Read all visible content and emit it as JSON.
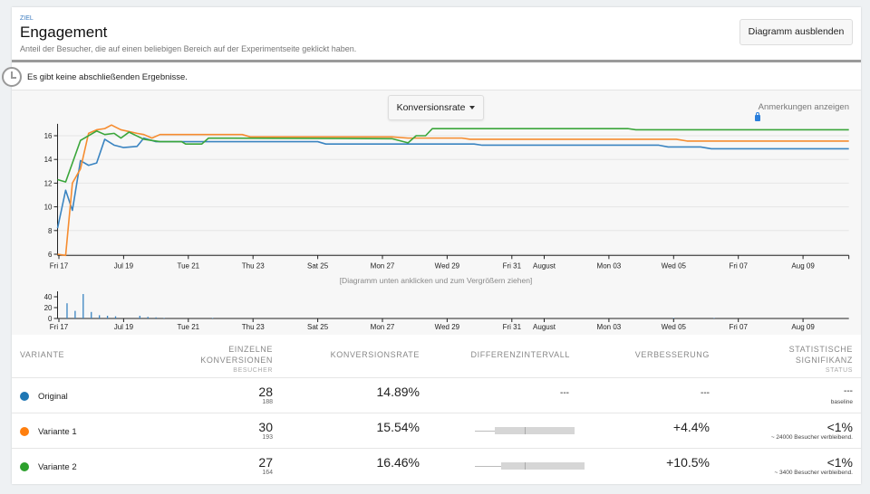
{
  "header": {
    "goal_label": "ZIEL",
    "title": "Engagement",
    "description": "Anteil der Besucher, die auf einen beliebigen Bereich auf der Experimentseite geklickt haben.",
    "hide_chart_button": "Diagramm ausblenden"
  },
  "notice": {
    "icon": "clock-icon",
    "text": "Es gibt keine abschließenden Ergebnisse."
  },
  "chart_controls": {
    "metric_select": "Konversionsrate",
    "annotations_link": "Anmerkungen anzeigen",
    "annotations_icon": "lock-icon",
    "zoom_hint": "[Diagramm unten anklicken und zum Vergrößern ziehen]"
  },
  "chart_data": [
    {
      "type": "line",
      "xlim": [
        "07-16 23:00",
        "08-10 10:00"
      ],
      "ylim": [
        5.9,
        17
      ],
      "grid": true,
      "y_ticks": [
        "6",
        "8",
        "10",
        "12",
        "14",
        "16"
      ],
      "x_ticks": [
        {
          "at": "07-17 00:00",
          "label": "Fri 17"
        },
        {
          "at": "07-19 00:00",
          "label": "Jul 19"
        },
        {
          "at": "07-21 00:00",
          "label": "Tue 21"
        },
        {
          "at": "07-23 00:00",
          "label": "Thu 23"
        },
        {
          "at": "07-25 00:00",
          "label": "Sat 25"
        },
        {
          "at": "07-27 00:00",
          "label": "Mon 27"
        },
        {
          "at": "07-29 00:00",
          "label": "Wed 29"
        },
        {
          "at": "07-31 00:00",
          "label": "Fri 31"
        },
        {
          "at": "08-01 00:00",
          "label": "August"
        },
        {
          "at": "08-03 00:00",
          "label": "Mon 03"
        },
        {
          "at": "08-05 00:00",
          "label": "Wed 05"
        },
        {
          "at": "08-07 00:00",
          "label": "Fri 07"
        },
        {
          "at": "08-09 00:00",
          "label": "Aug 09"
        }
      ],
      "series": [
        {
          "name": "Original",
          "color": "#3a84c1",
          "points": [
            [
              "07-16 23:00",
              8.2
            ],
            [
              "07-17 05:00",
              11.4
            ],
            [
              "07-17 10:00",
              9.7
            ],
            [
              "07-17 16:00",
              13.9
            ],
            [
              "07-17 22:00",
              13.5
            ],
            [
              "07-18 04:00",
              13.7
            ],
            [
              "07-18 10:00",
              15.7
            ],
            [
              "07-18 17:00",
              15.2
            ],
            [
              "07-19 00:00",
              15.0
            ],
            [
              "07-19 10:00",
              15.1
            ],
            [
              "07-19 15:00",
              15.8
            ],
            [
              "07-20 00:00",
              15.5
            ],
            [
              "07-25 00:00",
              15.5
            ],
            [
              "07-25 06:00",
              15.3
            ],
            [
              "07-29 20:00",
              15.3
            ],
            [
              "07-30 02:00",
              15.2
            ],
            [
              "08-04 13:00",
              15.2
            ],
            [
              "08-04 20:00",
              15.05
            ],
            [
              "08-05 20:00",
              15.05
            ],
            [
              "08-06 04:00",
              14.9
            ],
            [
              "08-10 10:00",
              14.9
            ]
          ]
        },
        {
          "name": "Variante 1",
          "color": "#f68c2f",
          "points": [
            [
              "07-16 23:00",
              6.0
            ],
            [
              "07-17 05:00",
              5.9
            ],
            [
              "07-17 10:00",
              12.0
            ],
            [
              "07-17 16:00",
              13.2
            ],
            [
              "07-17 22:00",
              16.2
            ],
            [
              "07-18 04:00",
              16.5
            ],
            [
              "07-18 10:00",
              16.6
            ],
            [
              "07-18 15:00",
              16.9
            ],
            [
              "07-18 22:00",
              16.5
            ],
            [
              "07-19 10:00",
              16.2
            ],
            [
              "07-19 15:00",
              16.1
            ],
            [
              "07-19 21:00",
              15.8
            ],
            [
              "07-20 03:00",
              16.1
            ],
            [
              "07-22 16:00",
              16.1
            ],
            [
              "07-22 22:00",
              15.9
            ],
            [
              "07-27 07:00",
              15.9
            ],
            [
              "07-27 19:00",
              15.8
            ],
            [
              "07-29 11:00",
              15.8
            ],
            [
              "07-29 17:00",
              15.7
            ],
            [
              "08-05 02:00",
              15.7
            ],
            [
              "08-05 10:00",
              15.55
            ],
            [
              "08-10 10:00",
              15.55
            ]
          ]
        },
        {
          "name": "Variante 2",
          "color": "#3aa63a",
          "points": [
            [
              "07-16 23:00",
              12.3
            ],
            [
              "07-17 05:00",
              12.1
            ],
            [
              "07-17 16:00",
              15.6
            ],
            [
              "07-18 04:00",
              16.4
            ],
            [
              "07-18 10:00",
              16.1
            ],
            [
              "07-18 17:00",
              16.2
            ],
            [
              "07-18 22:00",
              15.8
            ],
            [
              "07-19 04:00",
              16.3
            ],
            [
              "07-19 15:00",
              15.7
            ],
            [
              "07-20 03:00",
              15.5
            ],
            [
              "07-20 19:00",
              15.5
            ],
            [
              "07-20 22:00",
              15.3
            ],
            [
              "07-21 10:00",
              15.3
            ],
            [
              "07-21 15:00",
              15.8
            ],
            [
              "07-27 07:00",
              15.75
            ],
            [
              "07-27 19:00",
              15.4
            ],
            [
              "07-28 01:00",
              16.0
            ],
            [
              "07-28 08:00",
              16.0
            ],
            [
              "07-28 13:00",
              16.6
            ],
            [
              "08-03 14:00",
              16.6
            ],
            [
              "08-03 20:00",
              16.5
            ],
            [
              "08-10 10:00",
              16.5
            ]
          ]
        }
      ]
    },
    {
      "type": "bar",
      "ylim": [
        0,
        50
      ],
      "y_ticks": [
        "0",
        "20",
        "40"
      ],
      "color": "#3a84c1",
      "bars": [
        [
          "07-17 06:00",
          28
        ],
        [
          "07-17 12:00",
          14
        ],
        [
          "07-17 18:00",
          45
        ],
        [
          "07-18 00:00",
          12
        ],
        [
          "07-18 06:00",
          6
        ],
        [
          "07-18 12:00",
          5
        ],
        [
          "07-18 18:00",
          4
        ],
        [
          "07-19 12:00",
          5
        ],
        [
          "07-19 18:00",
          3
        ],
        [
          "07-20 00:00",
          2
        ],
        [
          "07-20 06:00",
          1
        ],
        [
          "07-21 18:00",
          1
        ],
        [
          "08-05 00:00",
          1
        ],
        [
          "08-06 06:00",
          1
        ]
      ]
    }
  ],
  "table": {
    "headers": {
      "variant": "VARIANTE",
      "conv_1": "EINZELNE",
      "conv_2": "KONVERSIONEN",
      "conv_sub": "BESUCHER",
      "rate": "KONVERSIONSRATE",
      "interval": "DIFFERENZINTERVALL",
      "improvement": "VERBESSERUNG",
      "sig_1": "STATISTISCHE",
      "sig_2": "SIGNIFIKANZ",
      "sig_sub": "STATUS"
    },
    "rows": [
      {
        "name": "Original",
        "color": "#1f77b4",
        "conversions": "28",
        "visitors": "188",
        "rate": "14.89%",
        "interval": "---",
        "improvement": "---",
        "significance": "---",
        "status": "baseline"
      },
      {
        "name": "Variante 1",
        "color": "#ff7f0e",
        "conversions": "30",
        "visitors": "193",
        "rate": "15.54%",
        "interval_range": [
          -15,
          25
        ],
        "improvement": "+4.4%",
        "significance": "<1%",
        "status": "~ 24000 Besucher verbleibend."
      },
      {
        "name": "Variante 2",
        "color": "#2ca02c",
        "conversions": "27",
        "visitors": "164",
        "rate": "16.46%",
        "interval_range": [
          -12,
          30
        ],
        "improvement": "+10.5%",
        "significance": "<1%",
        "status": "~ 3400 Besucher verbleibend."
      }
    ]
  }
}
